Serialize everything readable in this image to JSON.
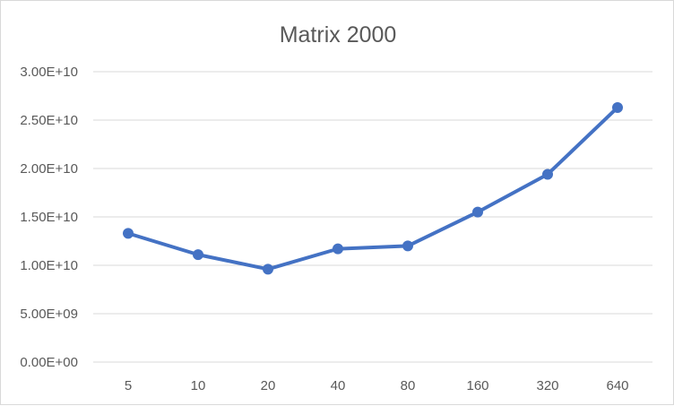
{
  "chart_data": {
    "type": "line",
    "title": "Matrix 2000",
    "xlabel": "",
    "ylabel": "",
    "categories": [
      "5",
      "10",
      "20",
      "40",
      "80",
      "160",
      "320",
      "640"
    ],
    "series": [
      {
        "values": [
          13300000000,
          11100000000,
          9600000000,
          11700000000,
          12000000000,
          15500000000,
          19400000000,
          26300000000
        ],
        "color": "#4472c4"
      }
    ],
    "ylim": [
      0,
      30000000000
    ],
    "y_ticks": [
      0,
      5000000000,
      10000000000,
      15000000000,
      20000000000,
      25000000000,
      30000000000
    ],
    "y_tick_labels": [
      "0.00E+00",
      "5.00E+09",
      "1.00E+10",
      "1.50E+10",
      "2.00E+10",
      "2.50E+10",
      "3.00E+10"
    ],
    "grid": true,
    "legend": "none",
    "markers": "circle"
  }
}
